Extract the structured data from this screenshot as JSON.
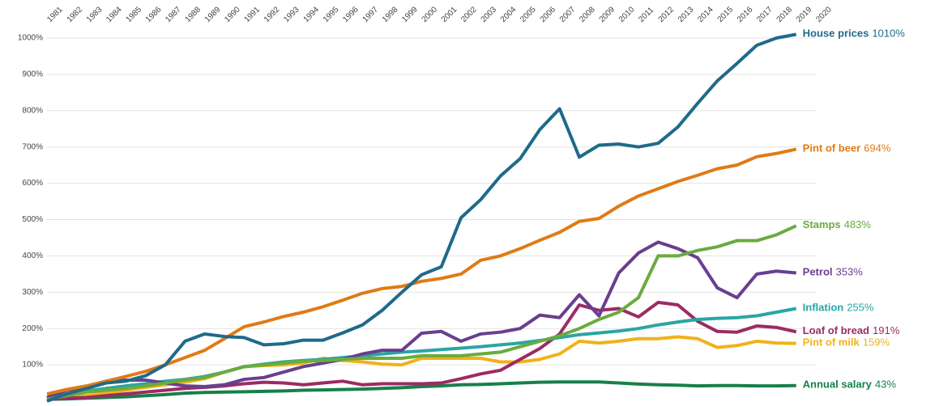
{
  "chart_data": {
    "type": "line",
    "x": [
      1981,
      1982,
      1983,
      1984,
      1985,
      1986,
      1987,
      1988,
      1989,
      1990,
      1991,
      1992,
      1993,
      1994,
      1995,
      1996,
      1997,
      1998,
      1999,
      2000,
      2001,
      2002,
      2003,
      2004,
      2005,
      2006,
      2007,
      2008,
      2009,
      2010,
      2011,
      2012,
      2013,
      2014,
      2015,
      2016,
      2017,
      2018,
      2019
    ],
    "xlim": [
      1981,
      2020
    ],
    "xticks": [
      1981,
      1982,
      1983,
      1984,
      1985,
      1986,
      1987,
      1988,
      1989,
      1990,
      1991,
      1992,
      1993,
      1994,
      1995,
      1996,
      1997,
      1998,
      1999,
      2000,
      2001,
      2002,
      2003,
      2004,
      2005,
      2006,
      2007,
      2008,
      2009,
      2010,
      2011,
      2012,
      2013,
      2014,
      2015,
      2016,
      2017,
      2018,
      2019,
      2020
    ],
    "ylim": [
      0,
      1000
    ],
    "yticks": [
      {
        "value": 100,
        "label": "100%"
      },
      {
        "value": 200,
        "label": "200%"
      },
      {
        "value": 300,
        "label": "300%"
      },
      {
        "value": 400,
        "label": "400%"
      },
      {
        "value": 500,
        "label": "500%"
      },
      {
        "value": 600,
        "label": "600%"
      },
      {
        "value": 700,
        "label": "700%"
      },
      {
        "value": 800,
        "label": "800%"
      },
      {
        "value": 900,
        "label": "900%"
      },
      {
        "value": 1000,
        "label": "1000%"
      }
    ],
    "grid": true,
    "series": [
      {
        "name": "House prices",
        "color": "#1f6a8a",
        "values": [
          0,
          20,
          35,
          50,
          55,
          70,
          100,
          165,
          185,
          178,
          175,
          155,
          158,
          168,
          168,
          188,
          210,
          250,
          300,
          348,
          370,
          505,
          555,
          620,
          668,
          748,
          805,
          672,
          705,
          708,
          700,
          710,
          755,
          820,
          882,
          930,
          980,
          1000,
          1010
        ],
        "value_labels": [
          null,
          null,
          null,
          null,
          null,
          null,
          null,
          null,
          null,
          null,
          null,
          null,
          null,
          null,
          null,
          null,
          null,
          null,
          null,
          null,
          null,
          null,
          null,
          null,
          null,
          null,
          null,
          null,
          null,
          null,
          null,
          null,
          null,
          null,
          null,
          null,
          null,
          null,
          "1010%"
        ]
      },
      {
        "name": "Pint of beer",
        "color": "#e07b14",
        "values": [
          20,
          32,
          42,
          55,
          68,
          82,
          100,
          120,
          140,
          172,
          205,
          218,
          233,
          245,
          260,
          278,
          297,
          310,
          316,
          330,
          338,
          350,
          388,
          400,
          420,
          443,
          465,
          495,
          503,
          537,
          565,
          585,
          605,
          622,
          640,
          650,
          673,
          682,
          694
        ],
        "value_labels": [
          null,
          null,
          null,
          null,
          null,
          null,
          null,
          null,
          null,
          null,
          null,
          null,
          null,
          null,
          null,
          null,
          null,
          null,
          null,
          null,
          null,
          null,
          null,
          null,
          null,
          null,
          null,
          null,
          null,
          null,
          null,
          null,
          null,
          null,
          null,
          null,
          null,
          null,
          "694%"
        ]
      },
      {
        "name": "Stamps",
        "color": "#6aab3f",
        "values": [
          5,
          15,
          25,
          30,
          35,
          42,
          50,
          58,
          65,
          80,
          95,
          100,
          105,
          110,
          112,
          115,
          118,
          118,
          118,
          125,
          125,
          125,
          130,
          135,
          150,
          165,
          180,
          200,
          225,
          245,
          285,
          400,
          400,
          415,
          425,
          442,
          442,
          458,
          483
        ],
        "value_labels": [
          null,
          null,
          null,
          null,
          null,
          null,
          null,
          null,
          null,
          null,
          null,
          null,
          null,
          null,
          null,
          null,
          null,
          null,
          null,
          null,
          null,
          null,
          null,
          null,
          null,
          null,
          null,
          null,
          null,
          null,
          null,
          null,
          null,
          null,
          null,
          null,
          null,
          null,
          "483%"
        ]
      },
      {
        "name": "Petrol",
        "color": "#6a3e8e",
        "values": [
          10,
          30,
          40,
          55,
          58,
          58,
          50,
          42,
          40,
          45,
          60,
          65,
          80,
          95,
          105,
          115,
          130,
          140,
          140,
          187,
          192,
          165,
          185,
          190,
          200,
          237,
          230,
          293,
          235,
          353,
          408,
          438,
          420,
          395,
          312,
          285,
          350,
          358,
          353
        ],
        "value_labels": [
          null,
          null,
          null,
          null,
          null,
          null,
          null,
          null,
          null,
          null,
          null,
          null,
          null,
          null,
          null,
          null,
          null,
          null,
          null,
          null,
          null,
          null,
          null,
          null,
          null,
          null,
          null,
          null,
          null,
          null,
          null,
          null,
          null,
          null,
          null,
          null,
          null,
          null,
          "353%"
        ]
      },
      {
        "name": "Inflation",
        "color": "#2aa5a5",
        "values": [
          5,
          20,
          28,
          35,
          42,
          48,
          55,
          60,
          68,
          80,
          95,
          102,
          108,
          112,
          115,
          120,
          125,
          130,
          135,
          138,
          142,
          146,
          150,
          155,
          160,
          167,
          175,
          183,
          188,
          193,
          200,
          210,
          218,
          225,
          228,
          230,
          235,
          245,
          255
        ],
        "value_labels": [
          null,
          null,
          null,
          null,
          null,
          null,
          null,
          null,
          null,
          null,
          null,
          null,
          null,
          null,
          null,
          null,
          null,
          null,
          null,
          null,
          null,
          null,
          null,
          null,
          null,
          null,
          null,
          null,
          null,
          null,
          null,
          null,
          null,
          null,
          null,
          null,
          null,
          null,
          "255%"
        ]
      },
      {
        "name": "Loaf of bread",
        "color": "#9b2c63",
        "values": [
          5,
          8,
          10,
          15,
          20,
          25,
          30,
          35,
          38,
          42,
          48,
          52,
          50,
          45,
          50,
          55,
          45,
          48,
          48,
          48,
          50,
          62,
          75,
          85,
          115,
          145,
          185,
          265,
          250,
          255,
          232,
          272,
          265,
          220,
          192,
          190,
          207,
          203,
          191
        ],
        "value_labels": [
          null,
          null,
          null,
          null,
          null,
          null,
          null,
          null,
          null,
          null,
          null,
          null,
          null,
          null,
          null,
          null,
          null,
          null,
          null,
          null,
          null,
          null,
          null,
          null,
          null,
          null,
          null,
          null,
          null,
          null,
          null,
          null,
          null,
          null,
          null,
          null,
          null,
          null,
          "191%"
        ]
      },
      {
        "name": "Pint of milk",
        "color": "#f0b21a",
        "values": [
          5,
          10,
          15,
          22,
          30,
          38,
          45,
          52,
          62,
          80,
          95,
          98,
          100,
          105,
          118,
          112,
          108,
          102,
          100,
          118,
          118,
          118,
          118,
          108,
          108,
          115,
          130,
          165,
          160,
          165,
          172,
          172,
          177,
          172,
          148,
          153,
          165,
          160,
          159
        ],
        "value_labels": [
          null,
          null,
          null,
          null,
          null,
          null,
          null,
          null,
          null,
          null,
          null,
          null,
          null,
          null,
          null,
          null,
          null,
          null,
          null,
          null,
          null,
          null,
          null,
          null,
          null,
          null,
          null,
          null,
          null,
          null,
          null,
          null,
          null,
          null,
          null,
          null,
          null,
          null,
          "159%"
        ]
      },
      {
        "name": "Annual salary",
        "color": "#17804a",
        "values": [
          5,
          6,
          8,
          10,
          12,
          15,
          18,
          22,
          24,
          25,
          26,
          27,
          28,
          30,
          31,
          32,
          33,
          35,
          37,
          40,
          42,
          45,
          46,
          48,
          50,
          52,
          53,
          53,
          53,
          50,
          47,
          45,
          44,
          42,
          43,
          43,
          42,
          42,
          43
        ],
        "value_labels": [
          null,
          null,
          null,
          null,
          null,
          null,
          null,
          null,
          null,
          null,
          null,
          null,
          null,
          null,
          null,
          null,
          null,
          null,
          null,
          null,
          null,
          null,
          null,
          null,
          null,
          null,
          null,
          null,
          null,
          null,
          null,
          null,
          null,
          null,
          null,
          null,
          null,
          null,
          "43%"
        ]
      }
    ]
  }
}
